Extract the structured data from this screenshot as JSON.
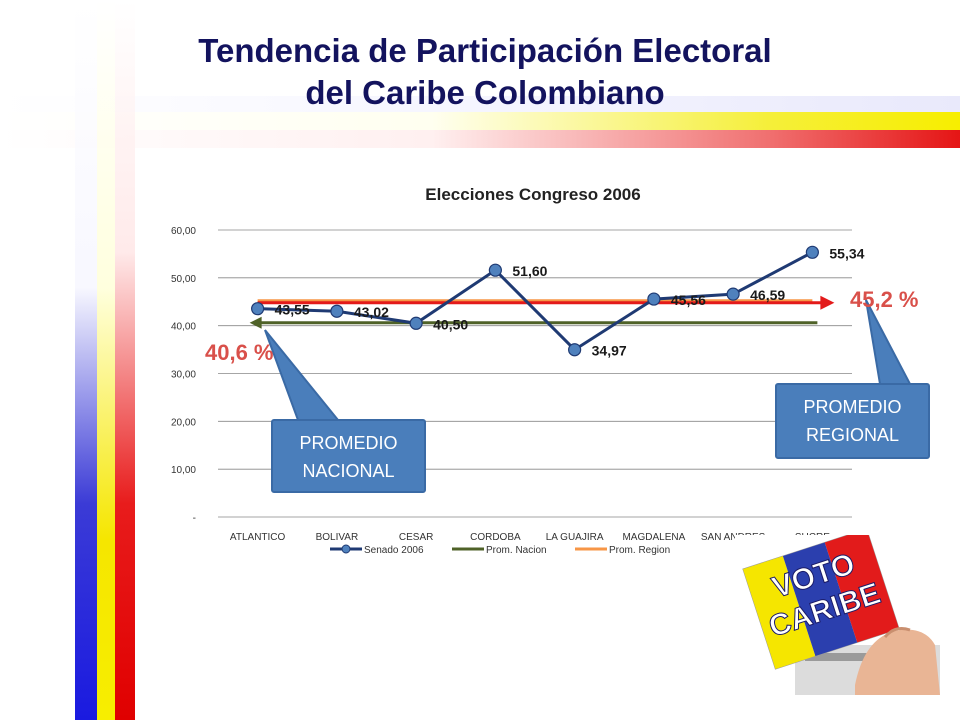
{
  "slide": {
    "title_line1": "Tendencia de Participación Electoral",
    "title_line2": "del Caribe Colombiano"
  },
  "colors": {
    "title": "#13135e",
    "senado_line": "#1f3a73",
    "senado_marker": "#4f81bd",
    "prom_nacion": "#4f6228",
    "prom_region": "#f79646",
    "red_arrow": "#e31a1a",
    "callout_fill": "#4a7ebb",
    "pct_text": "#d9504a"
  },
  "chart_data": {
    "type": "line",
    "title": "Elecciones Congreso 2006",
    "categories": [
      "ATLANTICO",
      "BOLIVAR",
      "CESAR",
      "CORDOBA",
      "LA GUAJIRA",
      "MAGDALENA",
      "SAN ANDRES",
      "SUCRE"
    ],
    "series": [
      {
        "name": "Senado 2006",
        "values": [
          43.55,
          43.02,
          40.5,
          51.6,
          34.97,
          45.56,
          46.59,
          55.34
        ],
        "labels": [
          "43,55",
          "43,02",
          "40,50",
          "51,60",
          "34,97",
          "45,56",
          "46,59",
          "55,34"
        ]
      },
      {
        "name": "Prom. Nacion",
        "values": [
          40.6,
          40.6,
          40.6,
          40.6,
          40.6,
          40.6,
          40.6,
          40.6
        ]
      },
      {
        "name": "Prom. Region",
        "values": [
          45.2,
          45.2,
          45.2,
          45.2,
          45.2,
          45.2,
          45.2,
          45.2
        ]
      }
    ],
    "yticks": [
      "-",
      "10,00",
      "20,00",
      "30,00",
      "40,00",
      "50,00",
      "60,00"
    ],
    "ylim": [
      0,
      60
    ],
    "grid": true,
    "legend": "bottom"
  },
  "annotations": {
    "pct_nacional": "40,6 %",
    "pct_regional": "45,2 %",
    "callout_nacional_line1": "PROMEDIO",
    "callout_nacional_line2": "NACIONAL",
    "callout_regional_line1": "PROMEDIO",
    "callout_regional_line2": "REGIONAL"
  },
  "logo": {
    "text1": "VOTO",
    "text2": "CARIBE"
  }
}
